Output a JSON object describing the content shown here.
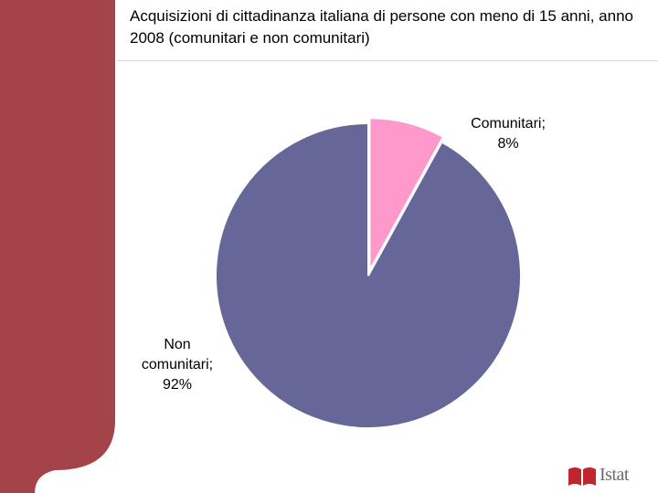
{
  "header": {
    "title": "Acquisizioni di cittadinanza italiana di persone con meno di 15 anni, anno 2008 (comunitari e non comunitari)"
  },
  "colors": {
    "sidebar": "#a5434a",
    "slice_non_comunitari": "#666699",
    "slice_comunitari": "#ff99cc"
  },
  "chart_data": {
    "type": "pie",
    "title": "Acquisizioni di cittadinanza italiana di persone con meno di 15 anni, anno 2008 (comunitari e non comunitari)",
    "slices": [
      {
        "name": "Comunitari",
        "value": 8,
        "label_lines": [
          "Comunitari;",
          "8%"
        ],
        "color": "#ff99cc",
        "exploded": true
      },
      {
        "name": "Non comunitari",
        "value": 92,
        "label_lines": [
          "Non",
          "comunitari;",
          "92%"
        ],
        "color": "#666699",
        "exploded": false
      }
    ],
    "start_angle": "12 o'clock, clockwise",
    "legend": "none"
  },
  "logo": {
    "text": "Istat",
    "icon": "istat-book-icon"
  }
}
